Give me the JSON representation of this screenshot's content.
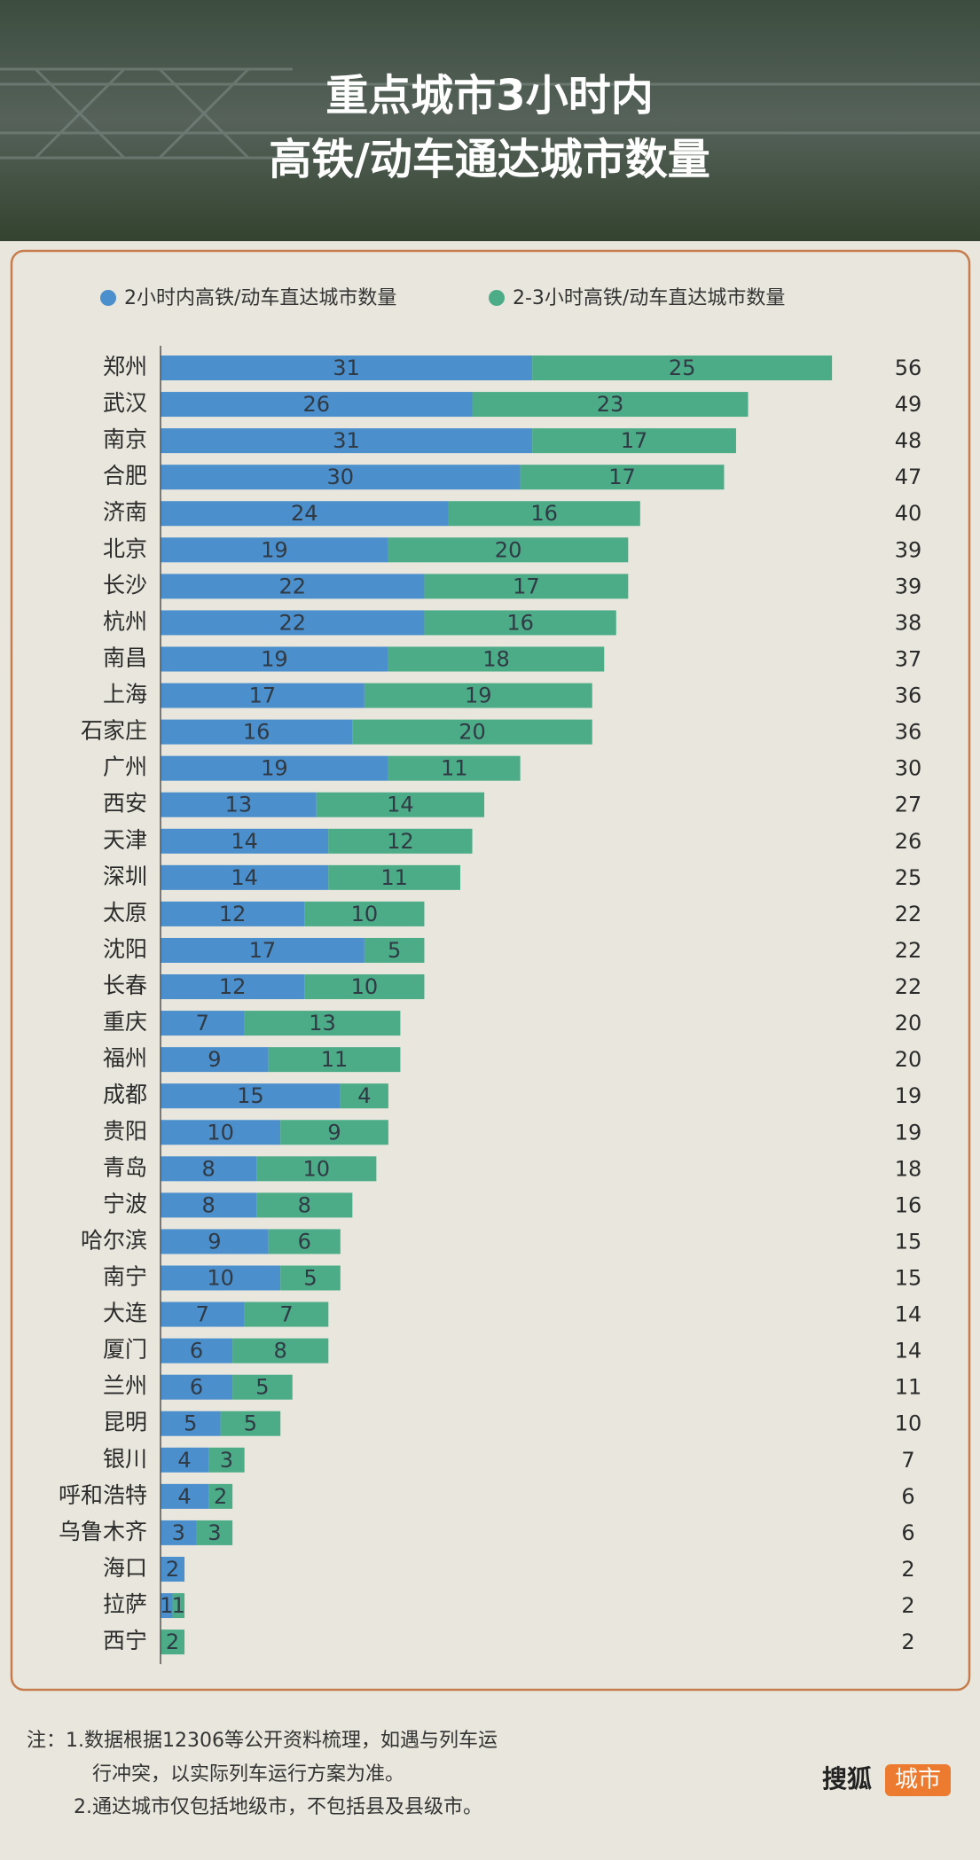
{
  "title_lines": [
    "重点城市3小时内",
    "高铁/动车通达城市数量"
  ],
  "chart_data": {
    "type": "bar",
    "orientation": "horizontal",
    "stacked": true,
    "categories": [
      "郑州",
      "武汉",
      "南京",
      "合肥",
      "济南",
      "北京",
      "长沙",
      "杭州",
      "南昌",
      "上海",
      "石家庄",
      "广州",
      "西安",
      "天津",
      "深圳",
      "太原",
      "沈阳",
      "长春",
      "重庆",
      "福州",
      "成都",
      "贵阳",
      "青岛",
      "宁波",
      "哈尔滨",
      "南宁",
      "大连",
      "厦门",
      "兰州",
      "昆明",
      "银川",
      "呼和浩特",
      "乌鲁木齐",
      "海口",
      "拉萨",
      "西宁"
    ],
    "series": [
      {
        "name": "2小时内高铁/动车直达城市数量",
        "color": "#4b8fcd",
        "values": [
          31,
          26,
          31,
          30,
          24,
          19,
          22,
          22,
          19,
          17,
          16,
          19,
          13,
          14,
          14,
          12,
          17,
          12,
          7,
          9,
          15,
          10,
          8,
          8,
          9,
          10,
          7,
          6,
          6,
          5,
          4,
          4,
          3,
          2,
          1,
          0
        ]
      },
      {
        "name": "2-3小时高铁/动车直达城市数量",
        "color": "#4cac88",
        "values": [
          25,
          23,
          17,
          17,
          16,
          20,
          17,
          16,
          18,
          19,
          20,
          11,
          14,
          12,
          11,
          10,
          5,
          10,
          13,
          11,
          4,
          9,
          10,
          8,
          6,
          5,
          7,
          8,
          5,
          5,
          3,
          2,
          3,
          0,
          1,
          2
        ]
      }
    ],
    "totals": [
      56,
      49,
      48,
      47,
      40,
      39,
      39,
      38,
      37,
      36,
      36,
      30,
      27,
      26,
      25,
      22,
      22,
      22,
      20,
      20,
      19,
      19,
      18,
      16,
      15,
      15,
      14,
      14,
      11,
      10,
      7,
      6,
      6,
      2,
      2,
      2
    ]
  },
  "notes": [
    "注：1.数据根据12306等公开资料梳理，如遇与列车运",
    "行冲突，以实际列车运行方案为准。",
    "2.通达城市仅包括地级市，不包括县及县级市。"
  ],
  "brand": {
    "name": "搜狐",
    "tag": "城市"
  }
}
